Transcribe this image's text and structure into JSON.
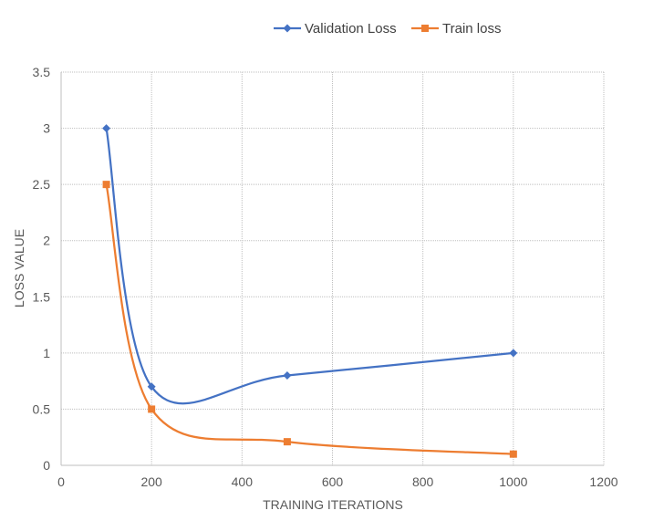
{
  "chart_data": {
    "type": "line",
    "title": "",
    "xlabel": "TRAINING ITERATIONS",
    "ylabel": "LOSS VALUE",
    "xlim": [
      0,
      1200
    ],
    "ylim": [
      0,
      3.5
    ],
    "x_ticks": [
      "0",
      "200",
      "400",
      "600",
      "800",
      "1000",
      "1200"
    ],
    "y_ticks": [
      "0",
      "0.5",
      "1",
      "1.5",
      "2",
      "2.5",
      "3",
      "3.5"
    ],
    "x_tick_values": [
      0,
      200,
      400,
      600,
      800,
      1000,
      1200
    ],
    "y_tick_values": [
      0,
      0.5,
      1,
      1.5,
      2,
      2.5,
      3,
      3.5
    ],
    "grid": true,
    "smooth": true,
    "legend_position": "top",
    "series": [
      {
        "name": "Validation Loss",
        "color": "#4472C4",
        "marker": "diamond",
        "x": [
          100,
          200,
          500,
          1000
        ],
        "y": [
          3.0,
          0.7,
          0.8,
          1.0
        ]
      },
      {
        "name": "Train loss",
        "color": "#ED7D31",
        "marker": "square",
        "x": [
          100,
          200,
          500,
          1000
        ],
        "y": [
          2.5,
          0.5,
          0.21,
          0.1
        ]
      }
    ]
  }
}
